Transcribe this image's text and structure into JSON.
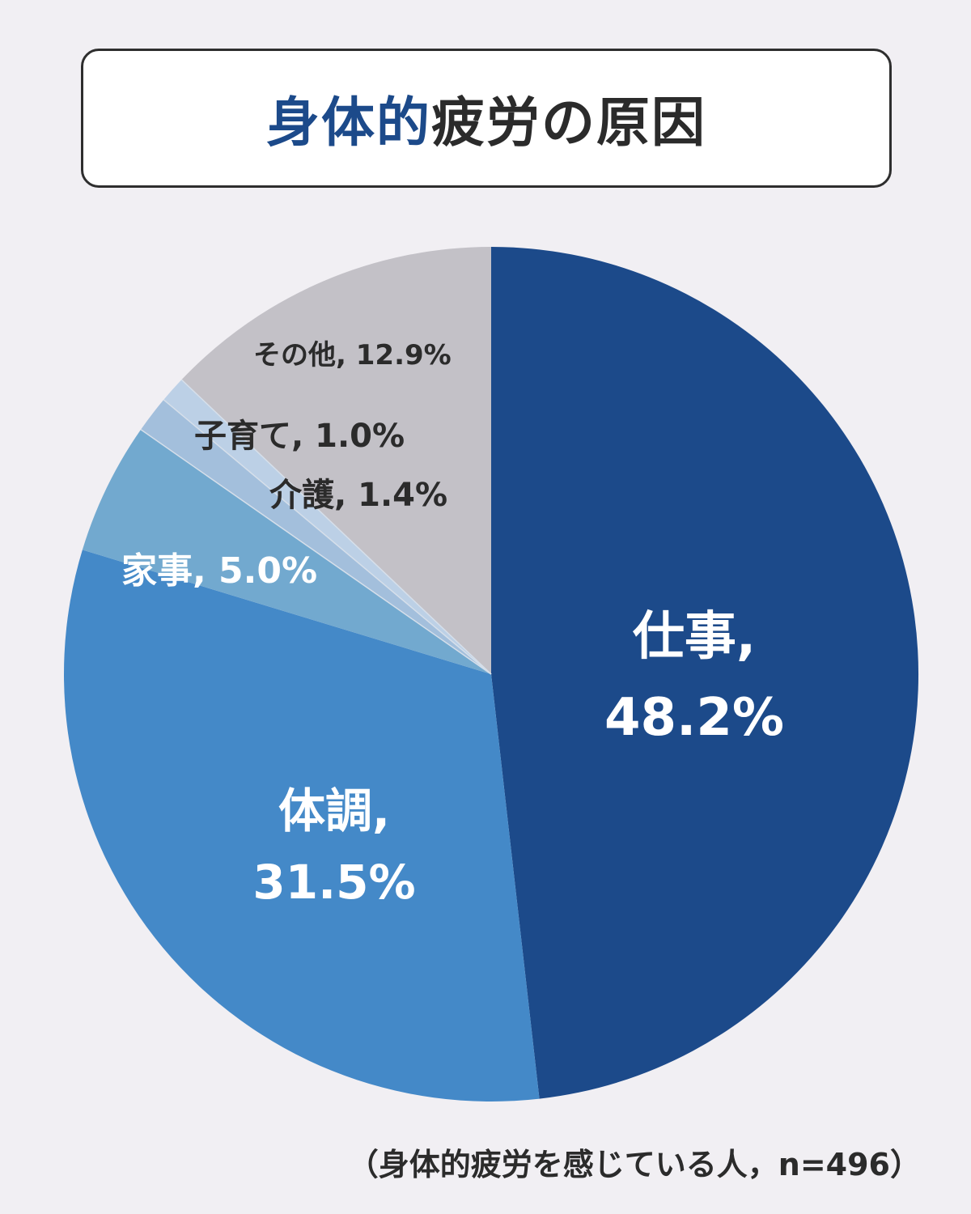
{
  "header": {
    "title_highlight": "身体的",
    "title_rest": "疲労の原因"
  },
  "chart_data": {
    "type": "pie",
    "title": "身体的疲労の原因",
    "start": "12 o'clock",
    "direction": "clockwise",
    "slices": [
      {
        "name": "仕事",
        "value": 48.2,
        "label_lines": [
          "仕事,",
          "48.2%"
        ],
        "color": "#1c4a8a",
        "text_color": "#ffffff"
      },
      {
        "name": "体調",
        "value": 31.5,
        "label_lines": [
          "体調,",
          "31.5%"
        ],
        "color": "#4489c8",
        "text_color": "#ffffff"
      },
      {
        "name": "家事",
        "value": 5.0,
        "label_lines": [
          "家事, 5.0%"
        ],
        "color": "#72a9cf",
        "text_color": "#ffffff"
      },
      {
        "name": "介護",
        "value": 1.4,
        "label_lines": [
          "介護, 1.4%"
        ],
        "color": "#a3bfdc",
        "text_color": "#2b2b2b"
      },
      {
        "name": "子育て",
        "value": 1.0,
        "label_lines": [
          "子育て, 1.0%"
        ],
        "color": "#bcd0e6",
        "text_color": "#2b2b2b"
      },
      {
        "name": "その他",
        "value": 12.9,
        "label_lines": [
          "その他, 12.9%"
        ],
        "color": "#c3c1c7",
        "text_color": "#2b2b2b"
      }
    ]
  },
  "footnote": "（身体的疲労を感じている人，n=496）"
}
